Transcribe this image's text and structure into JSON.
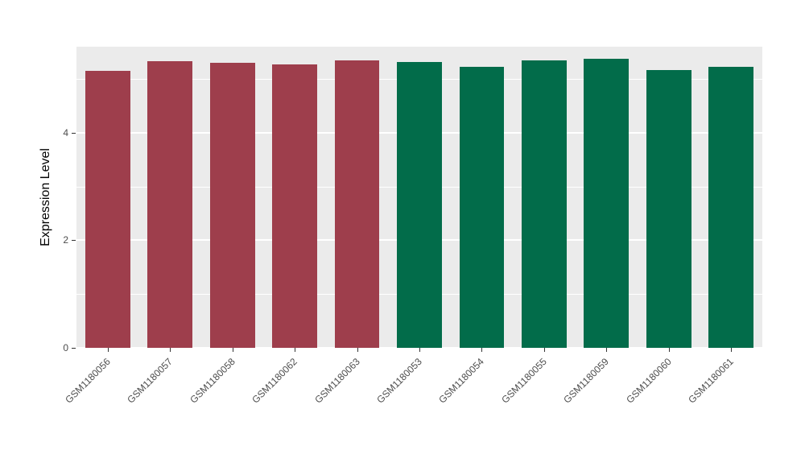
{
  "chart_data": {
    "type": "bar",
    "title": "",
    "xlabel": "",
    "ylabel": "Expression Level",
    "ylim": [
      0,
      5.6
    ],
    "yticks": [
      0,
      2,
      4
    ],
    "minor_gridlines": [
      1,
      3,
      5
    ],
    "grid": true,
    "legend_position": "none",
    "panel_bg": "#EBEBEB",
    "grid_color": "#FFFFFF",
    "categories": [
      "GSM1180056",
      "GSM1180057",
      "GSM1180058",
      "GSM1180062",
      "GSM1180063",
      "GSM1180053",
      "GSM1180054",
      "GSM1180055",
      "GSM1180059",
      "GSM1180060",
      "GSM1180061"
    ],
    "values": [
      5.15,
      5.33,
      5.3,
      5.27,
      5.34,
      5.31,
      5.22,
      5.35,
      5.38,
      5.16,
      5.23
    ],
    "bar_colors": [
      "#9E3E4C",
      "#9E3E4C",
      "#9E3E4C",
      "#9E3E4C",
      "#9E3E4C",
      "#026C4A",
      "#026C4A",
      "#026C4A",
      "#026C4A",
      "#026C4A",
      "#026C4A"
    ],
    "group_colors": {
      "maroon_group": "#9E3E4C",
      "green_group": "#026C4A"
    }
  }
}
